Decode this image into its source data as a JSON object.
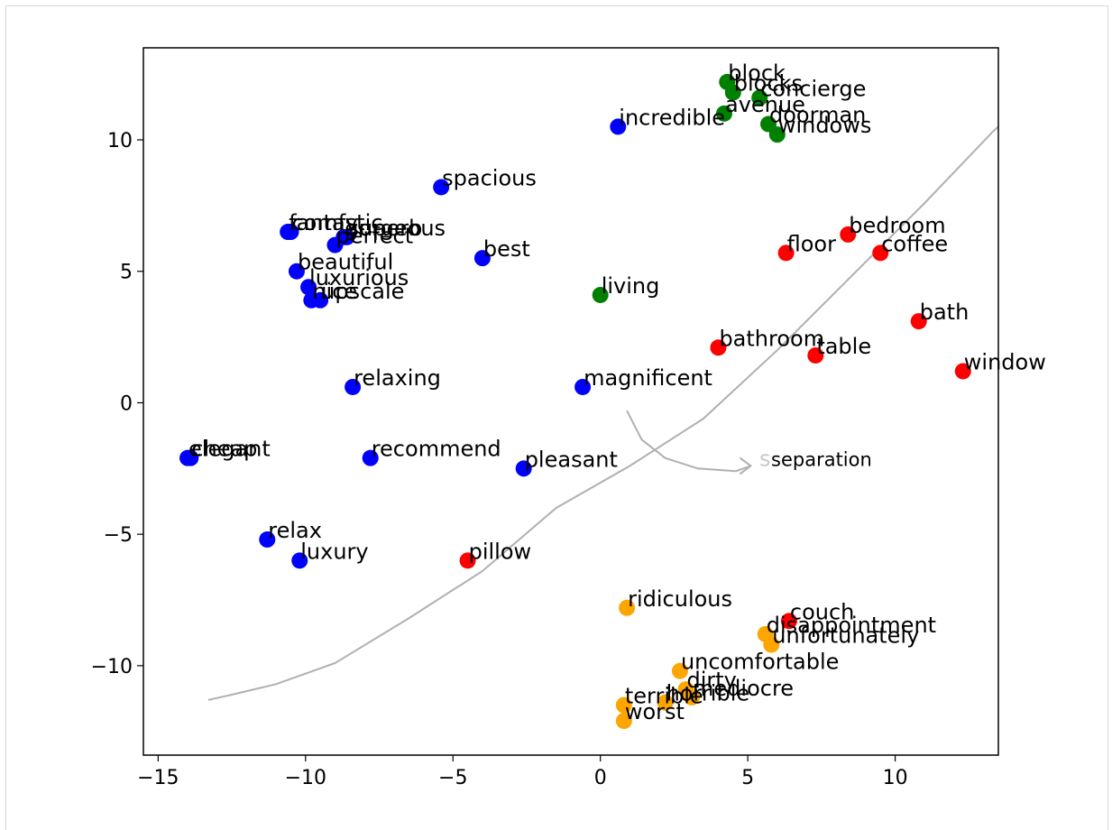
{
  "chart_data": {
    "type": "scatter",
    "title": "",
    "xlabel": "",
    "ylabel": "",
    "xlim": [
      -15.5,
      13.5
    ],
    "ylim": [
      -13.4,
      13.5
    ],
    "x_ticks": [
      -15,
      -10,
      -5,
      0,
      5,
      10
    ],
    "x_tick_labels": [
      "−15",
      "−10",
      "−5",
      "0",
      "5",
      "10"
    ],
    "y_ticks": [
      -10,
      -5,
      0,
      5,
      10
    ],
    "y_tick_labels": [
      "−10",
      "−5",
      "0",
      "5",
      "10"
    ],
    "grid": false,
    "colors": {
      "blue": "#0000ff",
      "green": "#008000",
      "red": "#ff0000",
      "orange": "#ffa500"
    },
    "points": [
      {
        "label": "incredible",
        "x": 0.6,
        "y": 10.5,
        "color": "blue"
      },
      {
        "label": "spacious",
        "x": -5.4,
        "y": 8.2,
        "color": "blue"
      },
      {
        "label": "fantastic",
        "x": -10.6,
        "y": 6.5,
        "color": "blue"
      },
      {
        "label": "comfy",
        "x": -10.5,
        "y": 6.5,
        "color": "blue"
      },
      {
        "label": "gorgeous",
        "x": -8.7,
        "y": 6.3,
        "color": "blue"
      },
      {
        "label": "superb",
        "x": -8.6,
        "y": 6.3,
        "color": "blue"
      },
      {
        "label": "perfect",
        "x": -9.0,
        "y": 6.0,
        "color": "blue"
      },
      {
        "label": "best",
        "x": -4.0,
        "y": 5.5,
        "color": "blue"
      },
      {
        "label": "beautiful",
        "x": -10.3,
        "y": 5.0,
        "color": "blue"
      },
      {
        "label": "luxurious",
        "x": -9.9,
        "y": 4.4,
        "color": "blue"
      },
      {
        "label": "nice",
        "x": -9.8,
        "y": 3.9,
        "color": "blue"
      },
      {
        "label": "upscale",
        "x": -9.5,
        "y": 3.9,
        "color": "blue"
      },
      {
        "label": "relaxing",
        "x": -8.4,
        "y": 0.6,
        "color": "blue"
      },
      {
        "label": "magnificent",
        "x": -0.6,
        "y": 0.6,
        "color": "blue"
      },
      {
        "label": "elegant",
        "x": -14.0,
        "y": -2.1,
        "color": "blue"
      },
      {
        "label": "cheap",
        "x": -13.9,
        "y": -2.1,
        "color": "blue"
      },
      {
        "label": "recommend",
        "x": -7.8,
        "y": -2.1,
        "color": "blue"
      },
      {
        "label": "pleasant",
        "x": -2.6,
        "y": -2.5,
        "color": "blue"
      },
      {
        "label": "relax",
        "x": -11.3,
        "y": -5.2,
        "color": "blue"
      },
      {
        "label": "luxury",
        "x": -10.2,
        "y": -6.0,
        "color": "blue"
      },
      {
        "label": "block",
        "x": 4.3,
        "y": 12.2,
        "color": "green"
      },
      {
        "label": "blocks",
        "x": 4.5,
        "y": 11.8,
        "color": "green"
      },
      {
        "label": "concierge",
        "x": 5.4,
        "y": 11.6,
        "color": "green"
      },
      {
        "label": "avenue",
        "x": 4.2,
        "y": 11.0,
        "color": "green"
      },
      {
        "label": "doorman",
        "x": 5.7,
        "y": 10.6,
        "color": "green"
      },
      {
        "label": "windows",
        "x": 6.0,
        "y": 10.2,
        "color": "green"
      },
      {
        "label": "living",
        "x": 0.0,
        "y": 4.1,
        "color": "green"
      },
      {
        "label": "bedroom",
        "x": 8.4,
        "y": 6.4,
        "color": "red"
      },
      {
        "label": "floor",
        "x": 6.3,
        "y": 5.7,
        "color": "red"
      },
      {
        "label": "coffee",
        "x": 9.5,
        "y": 5.7,
        "color": "red"
      },
      {
        "label": "bath",
        "x": 10.8,
        "y": 3.1,
        "color": "red"
      },
      {
        "label": "bathroom",
        "x": 4.0,
        "y": 2.1,
        "color": "red"
      },
      {
        "label": "table",
        "x": 7.3,
        "y": 1.8,
        "color": "red"
      },
      {
        "label": "window",
        "x": 12.3,
        "y": 1.2,
        "color": "red"
      },
      {
        "label": "pillow",
        "x": -4.5,
        "y": -6.0,
        "color": "red"
      },
      {
        "label": "couch",
        "x": 6.4,
        "y": -8.3,
        "color": "red"
      },
      {
        "label": "ridiculous",
        "x": 0.9,
        "y": -7.8,
        "color": "orange"
      },
      {
        "label": "disappointment",
        "x": 5.6,
        "y": -8.8,
        "color": "orange"
      },
      {
        "label": "unfortunately",
        "x": 5.8,
        "y": -9.2,
        "color": "orange"
      },
      {
        "label": "uncomfortable",
        "x": 2.7,
        "y": -10.2,
        "color": "orange"
      },
      {
        "label": "dirty",
        "x": 2.9,
        "y": -10.9,
        "color": "orange"
      },
      {
        "label": "terrible",
        "x": 0.8,
        "y": -11.5,
        "color": "orange"
      },
      {
        "label": "horrible",
        "x": 2.2,
        "y": -11.4,
        "color": "orange"
      },
      {
        "label": "mediocre",
        "x": 3.1,
        "y": -11.2,
        "color": "orange"
      },
      {
        "label": "worst",
        "x": 0.8,
        "y": -12.1,
        "color": "orange"
      }
    ],
    "annotation": {
      "text": "separation",
      "x": 5.7,
      "y": -2.4,
      "ghost_char": "s",
      "color": "#b0b0b0",
      "boundary_curve": [
        [
          -13.3,
          -11.3
        ],
        [
          -12.5,
          -11.1
        ],
        [
          -11.0,
          -10.7
        ],
        [
          -9.0,
          -9.9
        ],
        [
          -6.5,
          -8.2
        ],
        [
          -4.0,
          -6.4
        ],
        [
          -1.5,
          -4.0
        ],
        [
          1.0,
          -2.4
        ],
        [
          3.5,
          -0.6
        ],
        [
          6.0,
          2.0
        ],
        [
          8.5,
          4.8
        ],
        [
          11.0,
          7.6
        ],
        [
          13.3,
          10.3
        ],
        [
          13.5,
          10.5
        ]
      ],
      "arrow_curve": [
        [
          0.9,
          -0.3
        ],
        [
          1.4,
          -1.4
        ],
        [
          2.2,
          -2.1
        ],
        [
          3.3,
          -2.5
        ],
        [
          4.6,
          -2.6
        ],
        [
          5.1,
          -2.4
        ]
      ]
    }
  }
}
